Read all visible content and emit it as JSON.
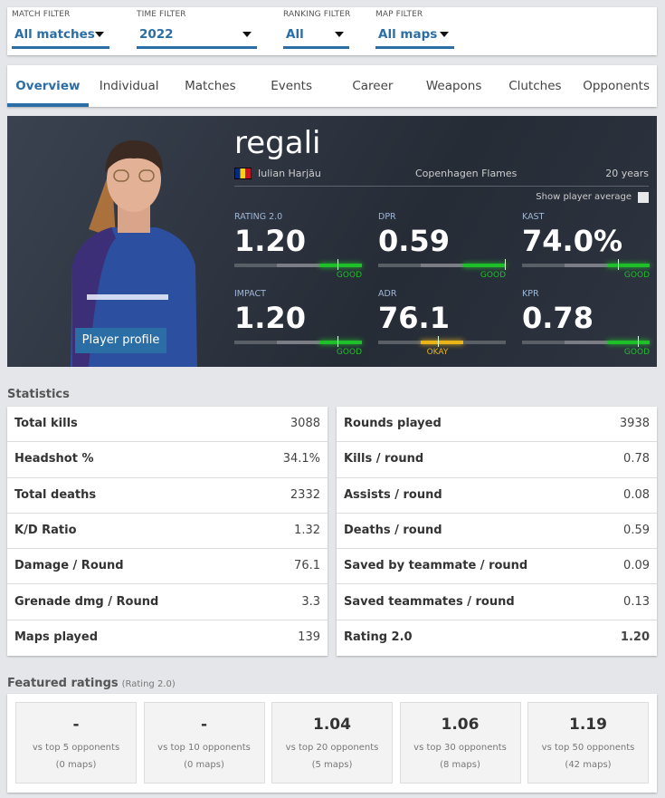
{
  "filters": [
    {
      "label": "MATCH FILTER",
      "value": "All matches"
    },
    {
      "label": "TIME FILTER",
      "value": "2022"
    },
    {
      "label": "RANKING FILTER",
      "value": "All"
    },
    {
      "label": "MAP FILTER",
      "value": "All maps"
    }
  ],
  "tabs": [
    "Overview",
    "Individual",
    "Matches",
    "Events",
    "Career",
    "Weapons",
    "Clutches",
    "Opponents"
  ],
  "active_tab": "Overview",
  "player": {
    "nickname": "regali",
    "real_name": "Iulian Harjău",
    "country": "Romania",
    "team": "Copenhagen Flames",
    "age": "20 years",
    "profile_button": "Player profile",
    "show_average": "Show player average",
    "show_average_checked": false
  },
  "hero_stats": [
    {
      "label": "RATING 2.0",
      "value": "1.20",
      "rating": "GOOD",
      "level": 3,
      "marker": 0.81
    },
    {
      "label": "DPR",
      "value": "0.59",
      "rating": "GOOD",
      "level": 3,
      "marker": 0.99
    },
    {
      "label": "KAST",
      "value": "74.0%",
      "rating": "GOOD",
      "level": 3,
      "marker": 0.75
    },
    {
      "label": "IMPACT",
      "value": "1.20",
      "rating": "GOOD",
      "level": 3,
      "marker": 0.81
    },
    {
      "label": "ADR",
      "value": "76.1",
      "rating": "OKAY",
      "level": 2,
      "marker": 0.47
    },
    {
      "label": "KPR",
      "value": "0.78",
      "rating": "GOOD",
      "level": 3,
      "marker": 0.91
    }
  ],
  "colors": {
    "accent": "#2b6ea6",
    "good": "#1fbf2a",
    "okay": "#e8b417"
  },
  "statistics_title": "Statistics",
  "stats_left": [
    [
      "Total kills",
      "3088"
    ],
    [
      "Headshot %",
      "34.1%"
    ],
    [
      "Total deaths",
      "2332"
    ],
    [
      "K/D Ratio",
      "1.32"
    ],
    [
      "Damage / Round",
      "76.1"
    ],
    [
      "Grenade dmg / Round",
      "3.3"
    ],
    [
      "Maps played",
      "139"
    ]
  ],
  "stats_right": [
    [
      "Rounds played",
      "3938"
    ],
    [
      "Kills / round",
      "0.78"
    ],
    [
      "Assists / round",
      "0.08"
    ],
    [
      "Deaths / round",
      "0.59"
    ],
    [
      "Saved by teammate / round",
      "0.09"
    ],
    [
      "Saved teammates / round",
      "0.13"
    ],
    [
      "Rating 2.0",
      "1.20"
    ]
  ],
  "featured": {
    "title": "Featured ratings",
    "subtitle": "(Rating 2.0)",
    "cards": [
      {
        "value": "-",
        "label": "vs top 5 opponents",
        "maps": "(0 maps)"
      },
      {
        "value": "-",
        "label": "vs top 10 opponents",
        "maps": "(0 maps)"
      },
      {
        "value": "1.04",
        "label": "vs top 20 opponents",
        "maps": "(5 maps)"
      },
      {
        "value": "1.06",
        "label": "vs top 30 opponents",
        "maps": "(8 maps)"
      },
      {
        "value": "1.19",
        "label": "vs top 50 opponents",
        "maps": "(42 maps)"
      }
    ]
  }
}
